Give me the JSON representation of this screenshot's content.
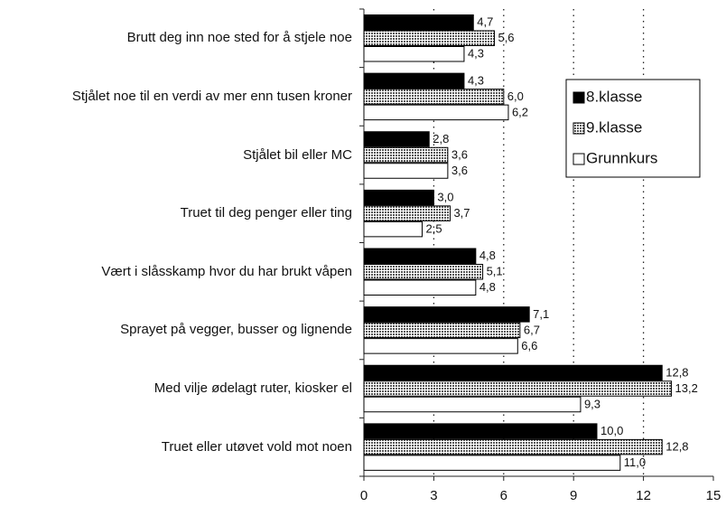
{
  "chart_data": {
    "type": "hbar",
    "categories": [
      "Brutt deg inn noe sted for å stjele noe",
      "Stjålet noe til en verdi av mer enn tusen kroner",
      "Stjålet bil eller MC",
      "Truet til deg penger eller ting",
      "Vært i slåsskamp hvor du har brukt våpen",
      "Sprayet på vegger, busser og lignende",
      "Med vilje ødelagt ruter, kiosker el",
      "Truet eller utøvet vold mot noen"
    ],
    "series": [
      {
        "name": "8.klasse",
        "color": "#000000",
        "values": [
          4.7,
          4.3,
          2.8,
          3.0,
          4.8,
          7.1,
          12.8,
          10.0
        ],
        "value_labels": [
          "4,7",
          "4,3",
          "2,8",
          "3,0",
          "4,8",
          "7,1",
          "12,8",
          "10,0"
        ]
      },
      {
        "name": "9.klasse",
        "color": "#9a9a9a",
        "values": [
          5.6,
          6.0,
          3.6,
          3.7,
          5.1,
          6.7,
          13.2,
          12.8
        ],
        "value_labels": [
          "5,6",
          "6,0",
          "3,6",
          "3,7",
          "5,1",
          "6,7",
          "13,2",
          "12,8"
        ]
      },
      {
        "name": "Grunnkurs",
        "color": "#ffffff",
        "values": [
          4.3,
          6.2,
          3.6,
          2.5,
          4.8,
          6.6,
          9.3,
          11.0
        ],
        "value_labels": [
          "4,3",
          "6,2",
          "3,6",
          "2,5",
          "4,8",
          "6,6",
          "9,3",
          "11,0"
        ]
      }
    ],
    "xlim": [
      0,
      15
    ],
    "xticks": [
      0,
      3,
      6,
      9,
      12,
      15
    ],
    "grid": true
  }
}
